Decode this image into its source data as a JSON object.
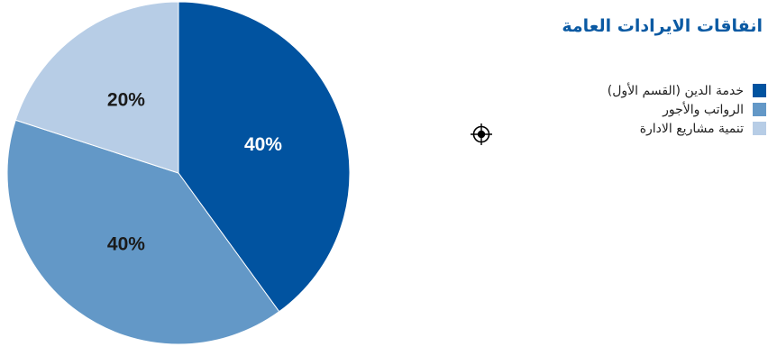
{
  "chart_data": {
    "type": "pie",
    "title": "انفاقات الايرادات العامة",
    "categories": [
      "خدمة الدين (القسم الأول)",
      "الرواتب والأجور",
      "تنمية مشاريع الادارة"
    ],
    "values": [
      40,
      40,
      20
    ],
    "colors": [
      "#0153a0",
      "#6398c7",
      "#b7cde6"
    ],
    "data_labels": [
      "40%",
      "40%",
      "20%"
    ],
    "label_colors": [
      "#ffffff",
      "#1a1a1a",
      "#1a1a1a"
    ],
    "legend_position": "right"
  },
  "icons": {
    "crosshair": "crosshair-target-icon"
  }
}
